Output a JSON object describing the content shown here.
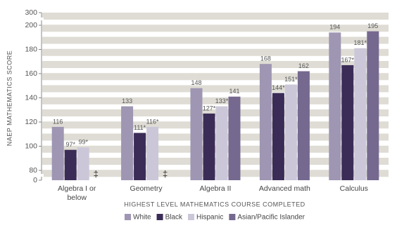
{
  "chart_data": {
    "type": "bar",
    "ylabel": "NAEP MATHEMATICS SCORE",
    "xlabel": "HIGHEST LEVEL MATHEMATICS COURSE COMPLETED",
    "categories": [
      "Algebra I or below",
      "Geometry",
      "Algebra II",
      "Advanced math",
      "Calculus"
    ],
    "series": [
      {
        "name": "White",
        "color": "#9e96b2",
        "values": [
          116,
          133,
          148,
          168,
          194
        ],
        "value_labels": [
          "116",
          "133",
          "148",
          "168",
          "194"
        ]
      },
      {
        "name": "Black",
        "color": "#3b2c57",
        "values": [
          97,
          111,
          127,
          144,
          167
        ],
        "value_labels": [
          "97*",
          "111*",
          "127*",
          "144*",
          "167*"
        ]
      },
      {
        "name": "Hispanic",
        "color": "#cbc7d8",
        "values": [
          99,
          116,
          133,
          151,
          181
        ],
        "value_labels": [
          "99*",
          "116*",
          "133*",
          "151*",
          "181*"
        ]
      },
      {
        "name": "Asian/Pacific Islander",
        "color": "#76698f",
        "values": [
          null,
          null,
          141,
          162,
          195
        ],
        "value_labels": [
          "‡",
          "‡",
          "141",
          "162",
          "195"
        ]
      }
    ],
    "ylim": [
      0,
      300
    ],
    "yticks": [
      0,
      80,
      100,
      120,
      140,
      160,
      180,
      200,
      300
    ],
    "grid": true
  }
}
